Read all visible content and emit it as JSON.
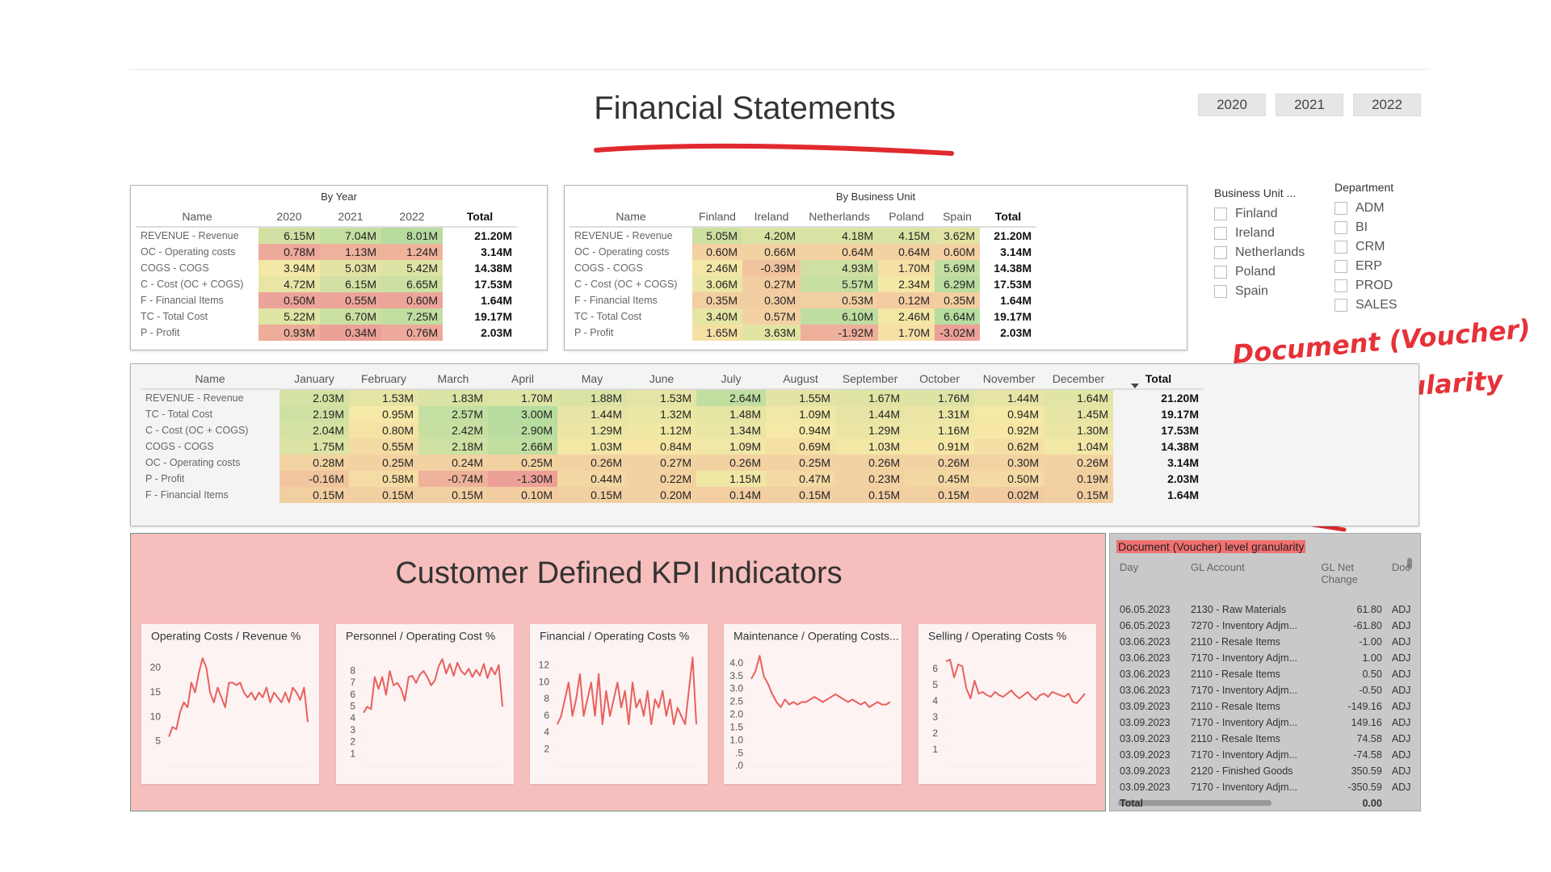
{
  "header": {
    "title": "Financial Statements",
    "years": [
      "2020",
      "2021",
      "2022"
    ]
  },
  "by_year": {
    "title": "By Year",
    "columns": [
      "Name",
      "2020",
      "2021",
      "2022",
      "Total"
    ],
    "rows": [
      [
        "REVENUE - Revenue",
        "6.15M",
        "7.04M",
        "8.01M",
        "21.20M"
      ],
      [
        "OC - Operating costs",
        "0.78M",
        "1.13M",
        "1.24M",
        "3.14M"
      ],
      [
        "COGS - COGS",
        "3.94M",
        "5.03M",
        "5.42M",
        "14.38M"
      ],
      [
        "C - Cost (OC + COGS)",
        "4.72M",
        "6.15M",
        "6.65M",
        "17.53M"
      ],
      [
        "F - Financial Items",
        "0.50M",
        "0.55M",
        "0.60M",
        "1.64M"
      ],
      [
        "TC - Total Cost",
        "5.22M",
        "6.70M",
        "7.25M",
        "19.17M"
      ],
      [
        "P - Profit",
        "0.93M",
        "0.34M",
        "0.76M",
        "2.03M"
      ]
    ]
  },
  "by_business_unit": {
    "title": "By Business Unit",
    "columns": [
      "Name",
      "Finland",
      "Ireland",
      "Netherlands",
      "Poland",
      "Spain",
      "Total"
    ],
    "rows": [
      [
        "REVENUE - Revenue",
        "5.05M",
        "4.20M",
        "4.18M",
        "4.15M",
        "3.62M",
        "21.20M"
      ],
      [
        "OC - Operating costs",
        "0.60M",
        "0.66M",
        "0.64M",
        "0.64M",
        "0.60M",
        "3.14M"
      ],
      [
        "COGS - COGS",
        "2.46M",
        "-0.39M",
        "4.93M",
        "1.70M",
        "5.69M",
        "14.38M"
      ],
      [
        "C - Cost (OC + COGS)",
        "3.06M",
        "0.27M",
        "5.57M",
        "2.34M",
        "6.29M",
        "17.53M"
      ],
      [
        "F - Financial Items",
        "0.35M",
        "0.30M",
        "0.53M",
        "0.12M",
        "0.35M",
        "1.64M"
      ],
      [
        "TC - Total Cost",
        "3.40M",
        "0.57M",
        "6.10M",
        "2.46M",
        "6.64M",
        "19.17M"
      ],
      [
        "P - Profit",
        "1.65M",
        "3.63M",
        "-1.92M",
        "1.70M",
        "-3.02M",
        "2.03M"
      ]
    ]
  },
  "by_month": {
    "columns": [
      "Name",
      "January",
      "February",
      "March",
      "April",
      "May",
      "June",
      "July",
      "August",
      "September",
      "October",
      "November",
      "December",
      "Total"
    ],
    "rows": [
      [
        "REVENUE - Revenue",
        "2.03M",
        "1.53M",
        "1.83M",
        "1.70M",
        "1.88M",
        "1.53M",
        "2.64M",
        "1.55M",
        "1.67M",
        "1.76M",
        "1.44M",
        "1.64M",
        "21.20M"
      ],
      [
        "TC - Total Cost",
        "2.19M",
        "0.95M",
        "2.57M",
        "3.00M",
        "1.44M",
        "1.32M",
        "1.48M",
        "1.09M",
        "1.44M",
        "1.31M",
        "0.94M",
        "1.45M",
        "19.17M"
      ],
      [
        "C - Cost (OC + COGS)",
        "2.04M",
        "0.80M",
        "2.42M",
        "2.90M",
        "1.29M",
        "1.12M",
        "1.34M",
        "0.94M",
        "1.29M",
        "1.16M",
        "0.92M",
        "1.30M",
        "17.53M"
      ],
      [
        "COGS - COGS",
        "1.75M",
        "0.55M",
        "2.18M",
        "2.66M",
        "1.03M",
        "0.84M",
        "1.09M",
        "0.69M",
        "1.03M",
        "0.91M",
        "0.62M",
        "1.04M",
        "14.38M"
      ],
      [
        "OC - Operating costs",
        "0.28M",
        "0.25M",
        "0.24M",
        "0.25M",
        "0.26M",
        "0.27M",
        "0.26M",
        "0.25M",
        "0.26M",
        "0.26M",
        "0.30M",
        "0.26M",
        "3.14M"
      ],
      [
        "P - Profit",
        "-0.16M",
        "0.58M",
        "-0.74M",
        "-1.30M",
        "0.44M",
        "0.22M",
        "1.15M",
        "0.47M",
        "0.23M",
        "0.45M",
        "0.50M",
        "0.19M",
        "2.03M"
      ],
      [
        "F - Financial Items",
        "0.15M",
        "0.15M",
        "0.15M",
        "0.10M",
        "0.15M",
        "0.20M",
        "0.14M",
        "0.15M",
        "0.15M",
        "0.15M",
        "0.02M",
        "0.15M",
        "1.64M"
      ]
    ]
  },
  "slicers": [
    {
      "title": "Business Unit ...",
      "items": [
        "Finland",
        "Ireland",
        "Netherlands",
        "Poland",
        "Spain"
      ]
    },
    {
      "title": "Department",
      "items": [
        "ADM",
        "BI",
        "CRM",
        "ERP",
        "PROD",
        "SALES"
      ]
    }
  ],
  "annotation": {
    "lines": [
      "Document (Voucher)",
      "level granularity"
    ]
  },
  "kpi": {
    "title": "Customer Defined KPI Indicators"
  },
  "chart_data": [
    {
      "type": "line",
      "title": "Operating Costs / Revenue %",
      "color": "#e8605d",
      "ylim": [
        0,
        23
      ],
      "yticks": [
        5,
        10,
        15,
        20
      ],
      "values": [
        6,
        8,
        7.5,
        11,
        13,
        12,
        17,
        15,
        19,
        22,
        20,
        15,
        13,
        16,
        14,
        12,
        17,
        17,
        16.5,
        17,
        15,
        14,
        15,
        13.5,
        15,
        14,
        16,
        13,
        15,
        14,
        13,
        15,
        13,
        16,
        15,
        13.5,
        16,
        9
      ]
    },
    {
      "type": "line",
      "title": "Personnel / Operating Cost %",
      "color": "#e8605d",
      "ylim": [
        0,
        9.5
      ],
      "yticks": [
        1,
        2,
        3,
        4,
        5,
        6,
        7,
        8
      ],
      "values": [
        4.5,
        5,
        4.8,
        7.5,
        6.5,
        7.5,
        6,
        8,
        6.8,
        7,
        6.5,
        5.5,
        7.5,
        7.6,
        7,
        7.7,
        8,
        7.5,
        6.8,
        7.2,
        8.4,
        9,
        7.8,
        8.6,
        7.6,
        8.7,
        8,
        7.7,
        8.2,
        7.5,
        8.1,
        7.6,
        8.6,
        7.4,
        8.3,
        7.7,
        8.5,
        5
      ]
    },
    {
      "type": "line",
      "title": "Financial / Operating Costs %",
      "color": "#e8605d",
      "ylim": [
        0,
        13.5
      ],
      "yticks": [
        2,
        4,
        6,
        8,
        10,
        12
      ],
      "values": [
        5,
        6,
        8,
        10,
        6,
        8,
        11,
        6,
        8,
        10,
        6,
        11,
        5,
        9,
        6,
        8,
        10,
        7,
        9,
        5,
        10,
        7,
        8,
        6,
        9,
        5,
        8,
        7,
        9,
        6,
        8,
        5,
        7,
        6,
        5,
        9,
        13,
        5
      ]
    },
    {
      "type": "line",
      "title": "Maintenance / Operating Costs...",
      "color": "#e8605d",
      "ylim": [
        0,
        4.4
      ],
      "yticks": [
        {
          "value": 0,
          "label": ".0"
        },
        {
          "value": 0.5,
          "label": ".5"
        },
        {
          "value": 1,
          "label": "1.0"
        },
        {
          "value": 1.5,
          "label": "1.5"
        },
        {
          "value": 2,
          "label": "2.0"
        },
        {
          "value": 2.5,
          "label": "2.5"
        },
        {
          "value": 3,
          "label": "3.0"
        },
        {
          "value": 3.5,
          "label": "3.5"
        },
        {
          "value": 4,
          "label": "4.0"
        }
      ],
      "values": [
        3.4,
        3.7,
        4.3,
        3.5,
        3.2,
        2.8,
        2.5,
        2.3,
        2.6,
        2.4,
        2.5,
        2.4,
        2.5,
        2.5,
        2.6,
        2.7,
        2.6,
        2.5,
        2.6,
        2.7,
        2.8,
        2.7,
        2.6,
        2.5,
        2.6,
        2.5,
        2.4,
        2.5,
        2.3,
        2.4,
        2.5,
        2.4,
        2.4,
        2.5
      ]
    },
    {
      "type": "line",
      "title": "Selling / Operating Costs %",
      "color": "#e8605d",
      "ylim": [
        0,
        7
      ],
      "yticks": [
        1,
        2,
        3,
        4,
        5,
        6
      ],
      "values": [
        6.5,
        6.6,
        5.5,
        6.3,
        6.2,
        4.8,
        4.2,
        5.3,
        4.5,
        4.6,
        4.4,
        4.3,
        4.6,
        4.4,
        4.3,
        4.5,
        4.7,
        4.4,
        4.2,
        4.4,
        4.6,
        4.3,
        4.1,
        4.4,
        4.5,
        4.3,
        4.6,
        4.5,
        4.4,
        4.3,
        4.5,
        4.0,
        3.9,
        4.2,
        4.5
      ]
    }
  ],
  "voucher": {
    "title": "Document (Voucher) level granularity",
    "columns": [
      "Day",
      "GL Account",
      "GL Net Change",
      "Doc"
    ],
    "rows": [
      [
        "06.05.2023",
        "2130 - Raw Materials",
        "61.80",
        "ADJ"
      ],
      [
        "06.05.2023",
        "7270 - Inventory Adjm...",
        "-61.80",
        "ADJ"
      ],
      [
        "03.06.2023",
        "2110 - Resale Items",
        "-1.00",
        "ADJ"
      ],
      [
        "03.06.2023",
        "7170 - Inventory Adjm...",
        "1.00",
        "ADJ"
      ],
      [
        "03.06.2023",
        "2110 - Resale Items",
        "0.50",
        "ADJ"
      ],
      [
        "03.06.2023",
        "7170 - Inventory Adjm...",
        "-0.50",
        "ADJ"
      ],
      [
        "03.09.2023",
        "2110 - Resale Items",
        "-149.16",
        "ADJ"
      ],
      [
        "03.09.2023",
        "7170 - Inventory Adjm...",
        "149.16",
        "ADJ"
      ],
      [
        "03.09.2023",
        "2110 - Resale Items",
        "74.58",
        "ADJ"
      ],
      [
        "03.09.2023",
        "7170 - Inventory Adjm...",
        "-74.58",
        "ADJ"
      ],
      [
        "03.09.2023",
        "2120 - Finished Goods",
        "350.59",
        "ADJ"
      ],
      [
        "03.09.2023",
        "7170 - Inventory Adjm...",
        "-350.59",
        "ADJ"
      ]
    ],
    "total": [
      "Total",
      "0.00"
    ]
  }
}
